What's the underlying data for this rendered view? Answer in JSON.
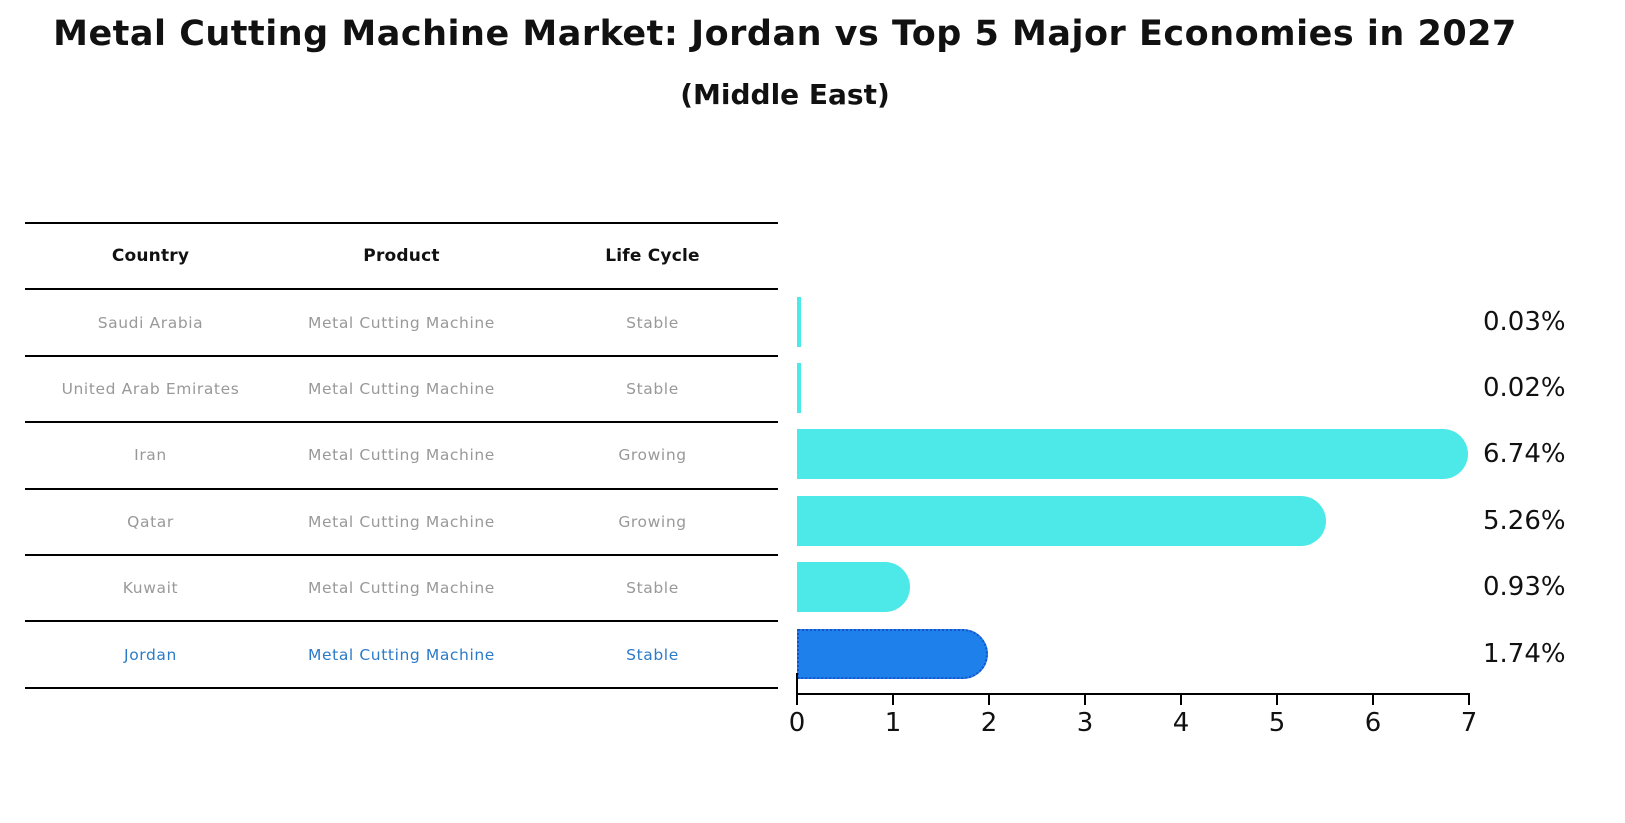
{
  "title": "Metal Cutting Machine Market: Jordan vs Top 5 Major Economies in 2027",
  "subtitle": "(Middle East)",
  "table": {
    "columns": [
      "Country",
      "Product",
      "Life Cycle"
    ],
    "rows": [
      {
        "country": "Saudi Arabia",
        "product": "Metal Cutting Machine",
        "life_cycle": "Stable",
        "highlight": false
      },
      {
        "country": "United Arab Emirates",
        "product": "Metal Cutting Machine",
        "life_cycle": "Stable",
        "highlight": false
      },
      {
        "country": "Iran",
        "product": "Metal Cutting Machine",
        "life_cycle": "Growing",
        "highlight": false
      },
      {
        "country": "Qatar",
        "product": "Metal Cutting Machine",
        "life_cycle": "Growing",
        "highlight": false
      },
      {
        "country": "Kuwait",
        "product": "Metal Cutting Machine",
        "life_cycle": "Stable",
        "highlight": false
      },
      {
        "country": "Jordan",
        "product": "Metal Cutting Machine",
        "life_cycle": "Stable",
        "highlight": true
      }
    ]
  },
  "chart_data": {
    "type": "bar",
    "orientation": "horizontal",
    "title": "Metal Cutting Machine Market: Jordan vs Top 5 Major Economies in 2027 (Middle East)",
    "categories": [
      "Saudi Arabia",
      "United Arab Emirates",
      "Iran",
      "Qatar",
      "Kuwait",
      "Jordan"
    ],
    "values": [
      0.03,
      0.02,
      6.74,
      5.26,
      0.93,
      1.74
    ],
    "value_labels": [
      "0.03%",
      "0.02%",
      "6.74%",
      "5.26%",
      "0.93%",
      "1.74%"
    ],
    "xlabel": "",
    "ylabel": "",
    "xlim": [
      0,
      7
    ],
    "xticks": [
      0,
      1,
      2,
      3,
      4,
      5,
      6,
      7
    ],
    "grid": false,
    "legend": false,
    "highlight_index": 5,
    "colors": {
      "bar": "#4DE8E8",
      "highlight_bar": "#1E80EB",
      "highlight_border": "#1553CC",
      "highlight_text": "#2B7BC9",
      "row_text": "#999999",
      "axis": "#000000",
      "label_text": "#111111"
    }
  }
}
